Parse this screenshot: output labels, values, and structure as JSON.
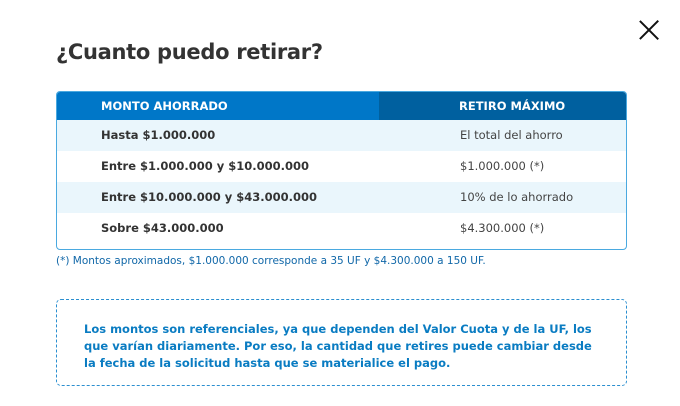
{
  "title": "¿Cuanto puedo retirar?",
  "table": {
    "headers": [
      "MONTO AHORRADO",
      "RETIRO MÁXIMO"
    ],
    "rows": [
      [
        "Hasta $1.000.000",
        "El total del ahorro"
      ],
      [
        "Entre $1.000.000 y $10.000.000",
        "$1.000.000 (*)"
      ],
      [
        "Entre $10.000.000 y $43.000.000",
        "10% de lo ahorrado"
      ],
      [
        "Sobre $43.000.000",
        "$4.300.000 (*)"
      ]
    ]
  },
  "footnote": "(*) Montos aproximados, $1.000.000 corresponde a 35 UF y $4.300.000 a 150 UF.",
  "note": "Los montos son referenciales, ya que dependen del Valor Cuota y de la UF, los que varían diariamente. Por eso, la cantidad que retires puede cambiar desde la fecha de la solicitud hasta que se materialice el pago."
}
